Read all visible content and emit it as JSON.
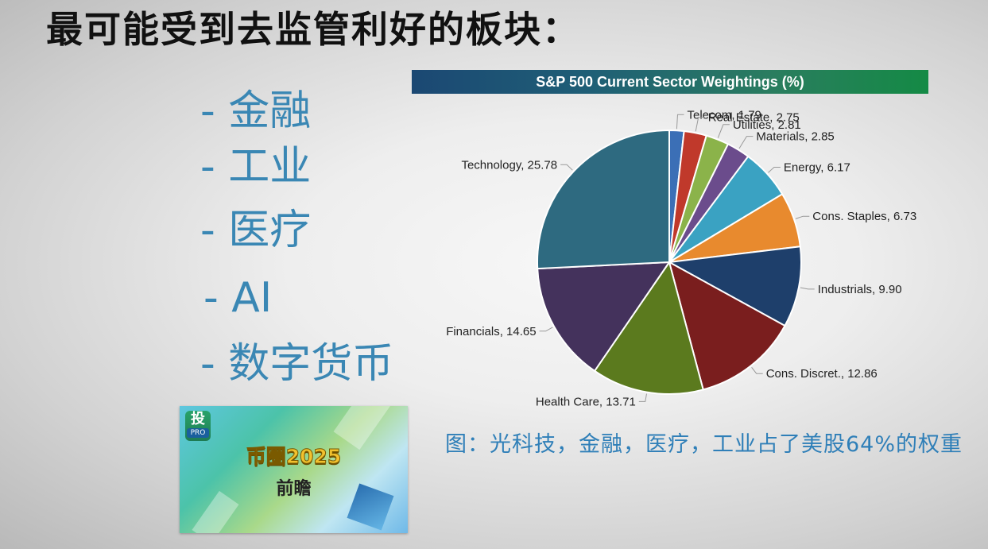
{
  "slide": {
    "title": "最可能受到去监管利好的板块：",
    "bullets": [
      "- 金融",
      "- 工业",
      "- 医疗",
      "- AI",
      "- 数字货币"
    ],
    "caption": "图：光科技，金融，医疗，工业占了美股64%的权重"
  },
  "video_thumbnail": {
    "logo_main": "投",
    "logo_sub": "PRO",
    "title": "币圈2025",
    "subtitle": "前瞻"
  },
  "chart_data": {
    "type": "pie",
    "title": "S&P 500 Current Sector Weightings (%)",
    "start": "12 o'clock",
    "direction": "clockwise",
    "slices": [
      {
        "label": "Telecom, 1.79",
        "name": "Telecom",
        "value": 1.79,
        "color": "#3b6fb6"
      },
      {
        "label": "Real Estate, 2.75",
        "name": "Real Estate",
        "value": 2.75,
        "color": "#c0392b"
      },
      {
        "label": "Utilities, 2.81",
        "name": "Utilities",
        "value": 2.81,
        "color": "#8bb34a"
      },
      {
        "label": "Materials, 2.85",
        "name": "Materials",
        "value": 2.85,
        "color": "#6b4c8c"
      },
      {
        "label": "Energy, 6.17",
        "name": "Energy",
        "value": 6.17,
        "color": "#3aa2c2"
      },
      {
        "label": "Cons. Staples, 6.73",
        "name": "Cons. Staples",
        "value": 6.73,
        "color": "#e88a2e"
      },
      {
        "label": "Industrials, 9.90",
        "name": "Industrials",
        "value": 9.9,
        "color": "#1e3f6b"
      },
      {
        "label": "Cons. Discret., 12.86",
        "name": "Cons. Discret.",
        "value": 12.86,
        "color": "#7a1e1e"
      },
      {
        "label": "Health Care, 13.71",
        "name": "Health Care",
        "value": 13.71,
        "color": "#5b7a1e"
      },
      {
        "label": "Financials, 14.65",
        "name": "Financials",
        "value": 14.65,
        "color": "#44325c"
      },
      {
        "label": "Technology, 25.78",
        "name": "Technology",
        "value": 25.78,
        "color": "#2e6a80"
      }
    ]
  }
}
